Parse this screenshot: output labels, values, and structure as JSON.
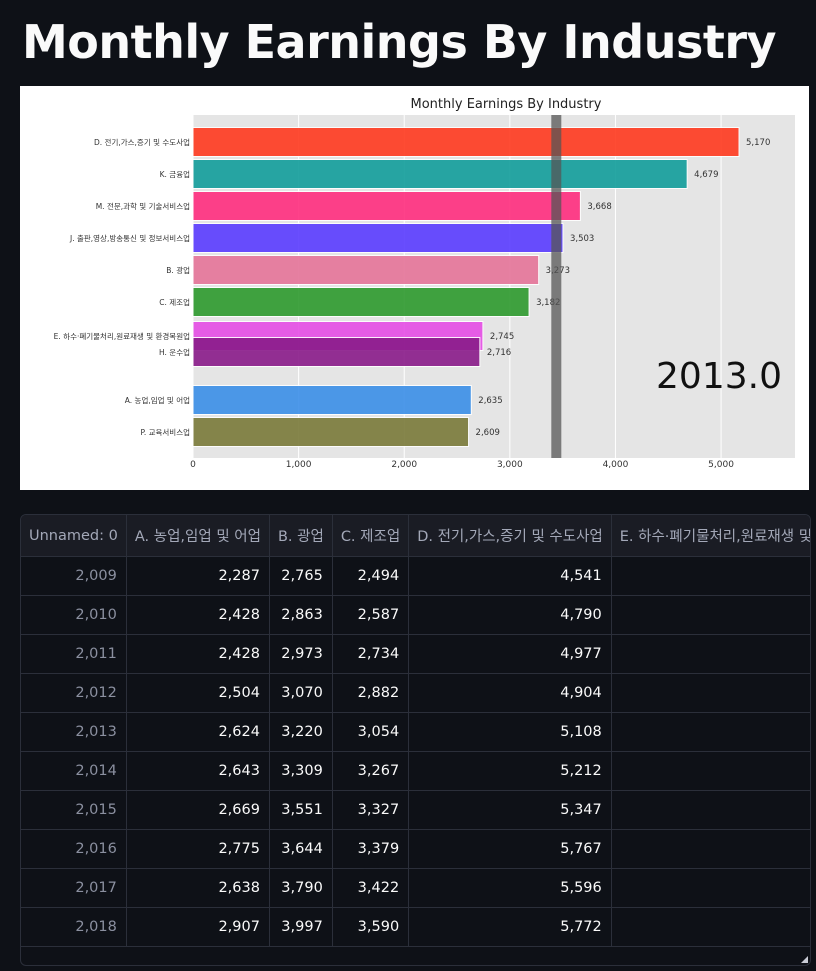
{
  "page": {
    "title": "Monthly Earnings By Industry"
  },
  "chart_data": {
    "type": "bar",
    "orientation": "horizontal",
    "title": "Monthly Earnings By Industry",
    "frame_label": "2013.0",
    "categories": [
      "D. 전기,가스,증기 및 수도사업",
      "K. 금융업",
      "M. 전문,과학 및 기술서비스업",
      "J. 출판,영상,방송통신 및 정보서비스업",
      "B. 광업",
      "C. 제조업",
      "E. 하수·폐기물처리,원료재생 및 환경복원업",
      "H. 운수업",
      "A. 농업,임업 및 어업",
      "P. 교육서비스업"
    ],
    "values": [
      5170,
      4679,
      3668,
      3503,
      3273,
      3182,
      2745,
      2716,
      2635,
      2609
    ],
    "value_labels": [
      "5,170",
      "4,679",
      "3,668",
      "3,503",
      "3,273",
      "3,182",
      "2,745",
      "2,716",
      "2,635",
      "2,609"
    ],
    "colors": [
      "#ff3a1f",
      "#129e9b",
      "#ff2e7e",
      "#5a3cff",
      "#e57499",
      "#2e9a2e",
      "#e64ee6",
      "#8a1b8a",
      "#3b8fe8",
      "#7a7a3a"
    ],
    "x_ticks": [
      0,
      1000,
      2000,
      3000,
      4000,
      5000
    ],
    "x_tick_labels": [
      "0",
      "1,000",
      "2,000",
      "3,000",
      "4,000",
      "5,000"
    ],
    "xlim": [
      0,
      5700
    ],
    "reference_line": 3440,
    "grid": true
  },
  "table": {
    "columns": [
      "Unnamed: 0",
      "A. 농업,임업 및 어업",
      "B. 광업",
      "C. 제조업",
      "D. 전기,가스,증기 및 수도사업",
      "E. 하수·폐기물처리,원료재생 및 환경복원업"
    ],
    "rows": [
      [
        "2,009",
        "2,287",
        "2,765",
        "2,494",
        "4,541",
        ""
      ],
      [
        "2,010",
        "2,428",
        "2,863",
        "2,587",
        "4,790",
        ""
      ],
      [
        "2,011",
        "2,428",
        "2,973",
        "2,734",
        "4,977",
        ""
      ],
      [
        "2,012",
        "2,504",
        "3,070",
        "2,882",
        "4,904",
        ""
      ],
      [
        "2,013",
        "2,624",
        "3,220",
        "3,054",
        "5,108",
        ""
      ],
      [
        "2,014",
        "2,643",
        "3,309",
        "3,267",
        "5,212",
        ""
      ],
      [
        "2,015",
        "2,669",
        "3,551",
        "3,327",
        "5,347",
        ""
      ],
      [
        "2,016",
        "2,775",
        "3,644",
        "3,379",
        "5,767",
        ""
      ],
      [
        "2,017",
        "2,638",
        "3,790",
        "3,422",
        "5,596",
        ""
      ],
      [
        "2,018",
        "2,907",
        "3,997",
        "3,590",
        "5,772",
        ""
      ]
    ]
  }
}
